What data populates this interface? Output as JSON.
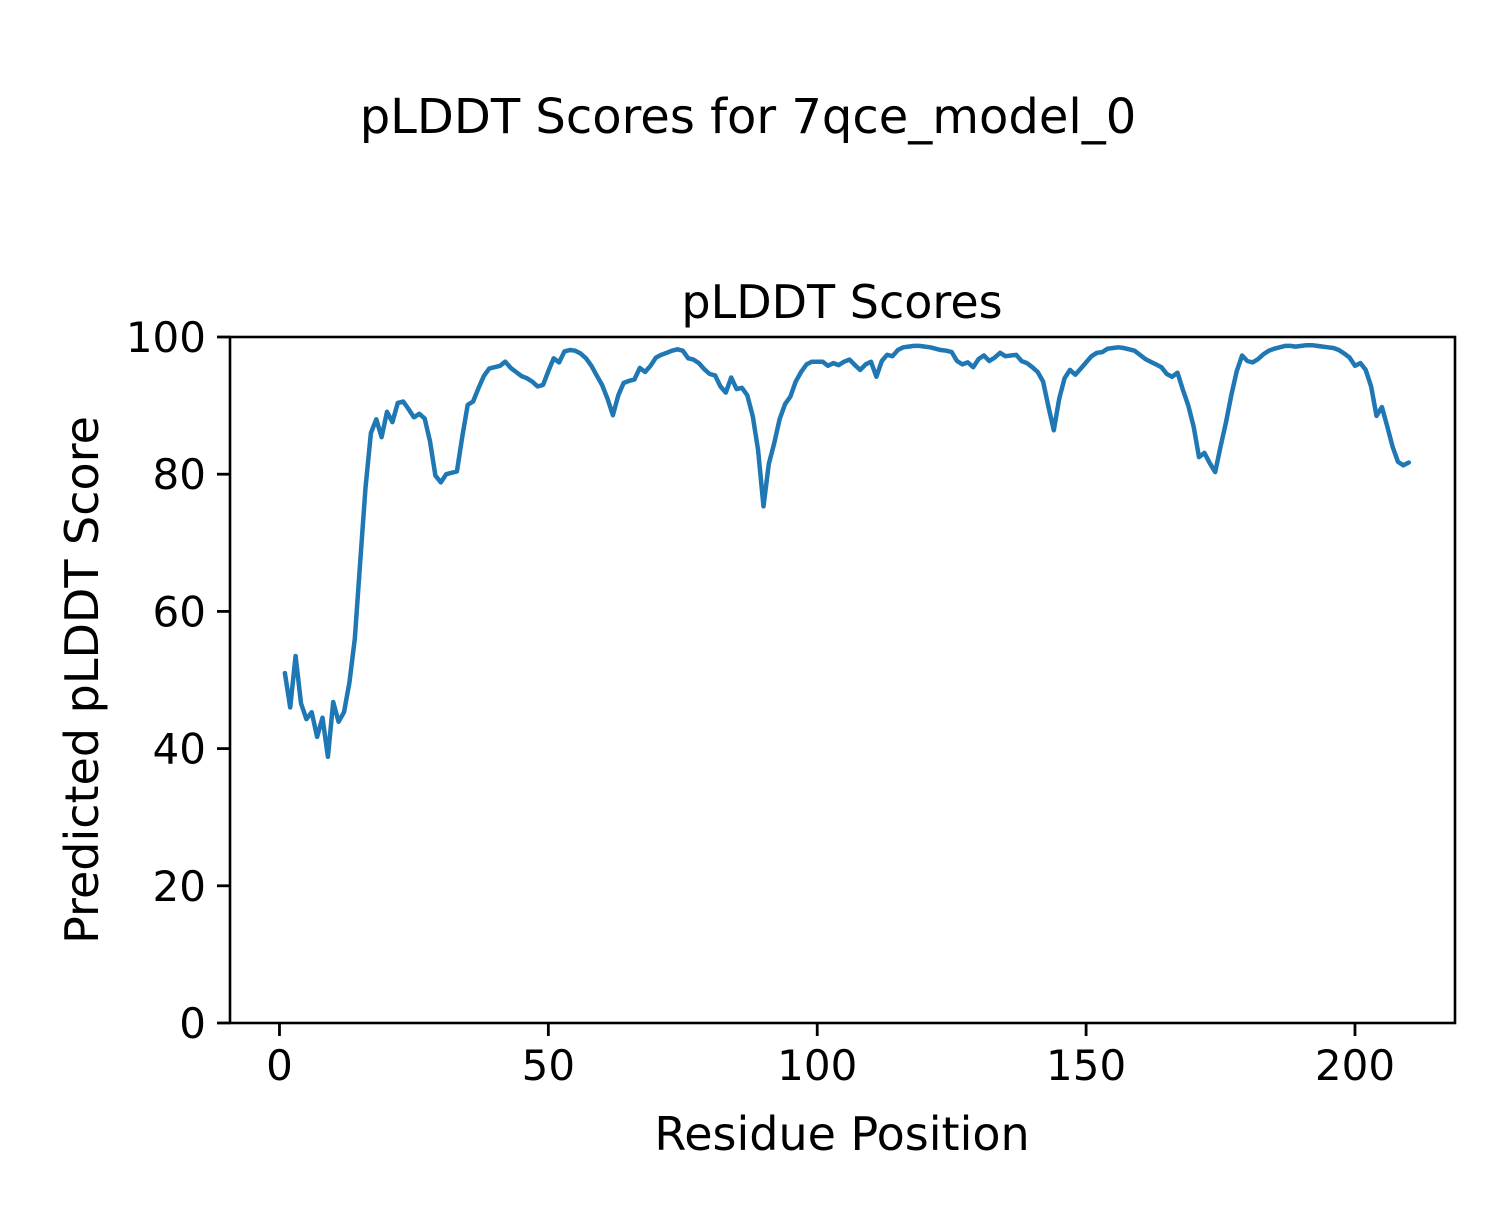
{
  "figure": {
    "suptitle": "pLDDT Scores for 7qce_model_0",
    "background_color": "#ffffff",
    "text_color": "#000000"
  },
  "chart_data": {
    "type": "line",
    "title": "pLDDT Scores",
    "xlabel": "Residue Position",
    "ylabel": "Predicted pLDDT Score",
    "line_color": "#1f77b4",
    "grid": false,
    "legend": "none",
    "xlim": [
      -9.2,
      218.6
    ],
    "ylim": [
      0,
      100
    ],
    "xticks": [
      0,
      50,
      100,
      150,
      200
    ],
    "yticks": [
      0,
      20,
      40,
      60,
      80,
      100
    ],
    "n_points": 210,
    "x_start": 1,
    "x_end": 210,
    "x_step": 1,
    "values": [
      51.0,
      46.0,
      53.5,
      46.6,
      44.3,
      45.3,
      41.7,
      44.5,
      38.8,
      46.8,
      43.9,
      45.3,
      49.6,
      56.0,
      67.0,
      78.0,
      86.0,
      88.0,
      85.4,
      89.1,
      87.6,
      90.4,
      90.6,
      89.5,
      88.3,
      88.8,
      88.1,
      84.8,
      79.8,
      78.8,
      80.0,
      80.2,
      80.4,
      85.5,
      90.1,
      90.6,
      92.5,
      94.3,
      95.4,
      95.6,
      95.8,
      96.4,
      95.5,
      94.9,
      94.3,
      94.0,
      93.5,
      92.8,
      93.0,
      95.0,
      96.9,
      96.3,
      97.9,
      98.1,
      98.0,
      97.6,
      96.9,
      95.8,
      94.4,
      93.0,
      91.0,
      88.6,
      91.5,
      93.3,
      93.6,
      93.8,
      95.5,
      94.9,
      95.8,
      97.0,
      97.4,
      97.7,
      98.0,
      98.2,
      98.0,
      96.9,
      96.7,
      96.2,
      95.3,
      94.6,
      94.4,
      92.8,
      91.9,
      94.1,
      92.4,
      92.6,
      91.5,
      88.5,
      83.5,
      75.3,
      81.5,
      84.5,
      88.0,
      90.2,
      91.3,
      93.5,
      94.9,
      96.0,
      96.4,
      96.4,
      96.4,
      95.8,
      96.2,
      95.9,
      96.4,
      96.7,
      95.9,
      95.2,
      96.0,
      96.4,
      94.2,
      96.5,
      97.4,
      97.2,
      98.1,
      98.5,
      98.6,
      98.7,
      98.7,
      98.6,
      98.5,
      98.3,
      98.1,
      98.0,
      97.8,
      96.5,
      96.0,
      96.3,
      95.6,
      96.8,
      97.3,
      96.5,
      97.0,
      97.7,
      97.2,
      97.3,
      97.4,
      96.5,
      96.2,
      95.6,
      94.9,
      93.5,
      89.8,
      86.4,
      91.0,
      94.0,
      95.2,
      94.5,
      95.4,
      96.3,
      97.2,
      97.7,
      97.8,
      98.3,
      98.4,
      98.5,
      98.4,
      98.2,
      98.0,
      97.4,
      96.8,
      96.4,
      96.0,
      95.6,
      94.6,
      94.2,
      94.8,
      92.3,
      90.0,
      86.9,
      82.5,
      83.1,
      81.6,
      80.3,
      84.0,
      87.5,
      91.5,
      95.0,
      97.3,
      96.5,
      96.3,
      96.8,
      97.5,
      98.0,
      98.3,
      98.5,
      98.7,
      98.7,
      98.6,
      98.7,
      98.8,
      98.8,
      98.7,
      98.6,
      98.5,
      98.4,
      98.1,
      97.6,
      97.0,
      95.8,
      96.2,
      95.2,
      92.8,
      88.5,
      89.8,
      87.0,
      84.0,
      81.8,
      81.3,
      81.7
    ]
  }
}
